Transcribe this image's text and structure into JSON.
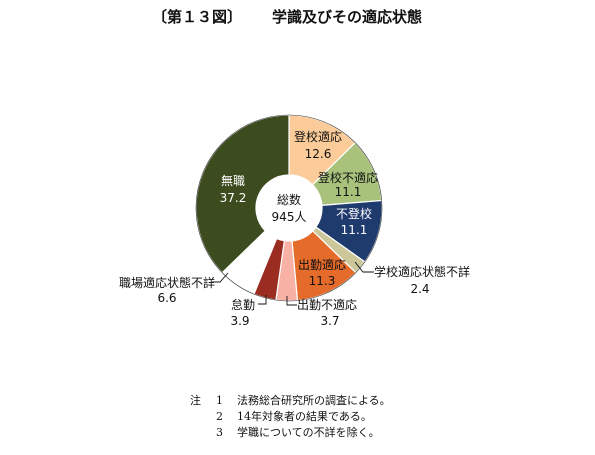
{
  "title": {
    "figure_label": "〔第１３図〕",
    "text": "学識及びその適応状態"
  },
  "chart_data": {
    "type": "pie",
    "variant": "donut",
    "center_label": {
      "line1": "総数",
      "line2": "945人"
    },
    "slices": [
      {
        "label": "登校適応",
        "value": 12.6,
        "value_text": "12.6",
        "color": "#fbcc99",
        "label_color": "#111111"
      },
      {
        "label": "登校不適応",
        "value": 11.1,
        "value_text": "11.1",
        "color": "#a8c27c",
        "label_color": "#111111"
      },
      {
        "label": "不登校",
        "value": 11.1,
        "value_text": "11.1",
        "color": "#1f3a6d",
        "label_color": "#ffffff"
      },
      {
        "label": "学校適応状態不詳",
        "value": 2.4,
        "value_text": "2.4",
        "color": "#cbc79a",
        "label_color": "#111111"
      },
      {
        "label": "出勤適応",
        "value": 11.3,
        "value_text": "11.3",
        "color": "#e56b2b",
        "label_color": "#111111"
      },
      {
        "label": "出勤不適応",
        "value": 3.7,
        "value_text": "3.7",
        "color": "#f8b2a5",
        "label_color": "#111111"
      },
      {
        "label": "怠勤",
        "value": 3.9,
        "value_text": "3.9",
        "color": "#9a2c22",
        "label_color": "#111111"
      },
      {
        "label": "職場適応状態不詳",
        "value": 6.6,
        "value_text": "6.6",
        "color": "#ffffff",
        "label_color": "#111111"
      },
      {
        "label": "無職",
        "value": 37.2,
        "value_text": "37.2",
        "color": "#3c4c1f",
        "label_color": "#ffffff"
      }
    ]
  },
  "notes": {
    "head": "注",
    "items": [
      {
        "num": "1",
        "text": "法務総合研究所の調査による。"
      },
      {
        "num": "2",
        "text": "14年対象者の結果である。"
      },
      {
        "num": "3",
        "text": "学職についての不詳を除く。"
      }
    ]
  }
}
